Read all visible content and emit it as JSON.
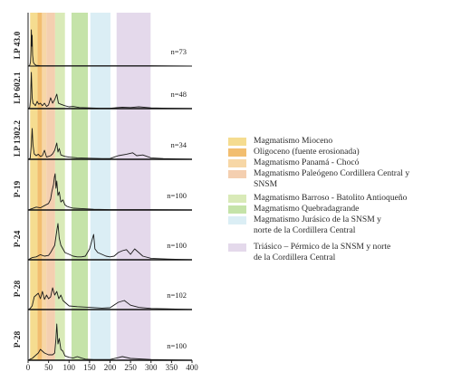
{
  "chart_data": {
    "type": "line",
    "title": "",
    "xlabel": "",
    "ylabel": "",
    "xlim": [
      0,
      400
    ],
    "x_ticks": [
      "0",
      "50",
      "100",
      "150",
      "200",
      "250",
      "300",
      "350",
      "400"
    ],
    "grid": false,
    "legend_position": "right",
    "bands": [
      {
        "label": "Magmatismo Mioceno",
        "range": [
          5,
          23
        ],
        "color": "#f5dc90"
      },
      {
        "label": "Oligoceno (fuente erosionada)",
        "range": [
          23,
          34
        ],
        "color": "#f2be70"
      },
      {
        "label": "Magmatismo Panamá  - Chocó",
        "range": [
          34,
          45
        ],
        "color": "#f7d7a6"
      },
      {
        "label": "Magmatismo Paleógeno Cordillera Central y\nSNSM",
        "range": [
          45,
          66
        ],
        "color": "#f4cfb0"
      },
      {
        "label": "Magmatismo Barroso - Batolito Antioqueño",
        "range": [
          66,
          90
        ],
        "color": "#d9eab8"
      },
      {
        "label": "Magmatismo Quebradagrande",
        "range": [
          106,
          146
        ],
        "color": "#c5e3a9"
      },
      {
        "label": "Magmatismo Jurásico de la SNSM y\nnorte de la Cordillera Central",
        "range": [
          152,
          201
        ],
        "color": "#dbeef5"
      },
      {
        "label": "Triásico – Pérmico de la SNSM y norte\nde la Cordillera Central",
        "range": [
          216,
          299
        ],
        "color": "#e4d9eb"
      }
    ],
    "series": [
      {
        "name": "LP 43.0",
        "n_label": "n=73",
        "points": [
          [
            0,
            0
          ],
          [
            4,
            2
          ],
          [
            6,
            12
          ],
          [
            7,
            45
          ],
          [
            8,
            100
          ],
          [
            9,
            55
          ],
          [
            10,
            85
          ],
          [
            11,
            30
          ],
          [
            13,
            10
          ],
          [
            16,
            5
          ],
          [
            20,
            2
          ],
          [
            30,
            1
          ],
          [
            60,
            1
          ],
          [
            100,
            1
          ],
          [
            200,
            1
          ],
          [
            300,
            1
          ],
          [
            400,
            0
          ]
        ]
      },
      {
        "name": "LP 602.1",
        "n_label": "n=48",
        "points": [
          [
            0,
            0
          ],
          [
            4,
            3
          ],
          [
            6,
            25
          ],
          [
            8,
            100
          ],
          [
            10,
            30
          ],
          [
            12,
            15
          ],
          [
            15,
            12
          ],
          [
            18,
            8
          ],
          [
            22,
            20
          ],
          [
            26,
            12
          ],
          [
            30,
            15
          ],
          [
            35,
            8
          ],
          [
            40,
            15
          ],
          [
            45,
            6
          ],
          [
            50,
            10
          ],
          [
            55,
            30
          ],
          [
            60,
            15
          ],
          [
            65,
            25
          ],
          [
            70,
            40
          ],
          [
            74,
            15
          ],
          [
            80,
            12
          ],
          [
            90,
            8
          ],
          [
            100,
            5
          ],
          [
            110,
            6
          ],
          [
            125,
            3
          ],
          [
            150,
            2
          ],
          [
            175,
            1
          ],
          [
            200,
            1
          ],
          [
            230,
            4
          ],
          [
            250,
            3
          ],
          [
            270,
            5
          ],
          [
            300,
            2
          ],
          [
            340,
            1
          ],
          [
            400,
            0
          ]
        ]
      },
      {
        "name": "LP 1302.2",
        "n_label": "n=34",
        "points": [
          [
            0,
            0
          ],
          [
            5,
            3
          ],
          [
            8,
            40
          ],
          [
            10,
            85
          ],
          [
            12,
            40
          ],
          [
            15,
            15
          ],
          [
            20,
            10
          ],
          [
            25,
            14
          ],
          [
            30,
            8
          ],
          [
            35,
            10
          ],
          [
            40,
            25
          ],
          [
            45,
            6
          ],
          [
            50,
            8
          ],
          [
            55,
            10
          ],
          [
            60,
            15
          ],
          [
            65,
            25
          ],
          [
            70,
            45
          ],
          [
            73,
            20
          ],
          [
            76,
            30
          ],
          [
            80,
            12
          ],
          [
            90,
            8
          ],
          [
            100,
            6
          ],
          [
            120,
            4
          ],
          [
            150,
            3
          ],
          [
            180,
            2
          ],
          [
            200,
            2
          ],
          [
            220,
            10
          ],
          [
            240,
            14
          ],
          [
            255,
            18
          ],
          [
            265,
            10
          ],
          [
            280,
            12
          ],
          [
            300,
            4
          ],
          [
            330,
            2
          ],
          [
            400,
            0
          ]
        ]
      },
      {
        "name": "P-19",
        "n_label": "n=100",
        "points": [
          [
            0,
            0
          ],
          [
            5,
            2
          ],
          [
            10,
            4
          ],
          [
            20,
            8
          ],
          [
            30,
            6
          ],
          [
            40,
            12
          ],
          [
            50,
            18
          ],
          [
            55,
            30
          ],
          [
            58,
            50
          ],
          [
            62,
            70
          ],
          [
            64,
            90
          ],
          [
            66,
            100
          ],
          [
            68,
            60
          ],
          [
            70,
            80
          ],
          [
            73,
            40
          ],
          [
            76,
            50
          ],
          [
            80,
            22
          ],
          [
            85,
            28
          ],
          [
            90,
            14
          ],
          [
            95,
            10
          ],
          [
            100,
            8
          ],
          [
            110,
            5
          ],
          [
            130,
            4
          ],
          [
            160,
            2
          ],
          [
            200,
            1
          ],
          [
            240,
            1
          ],
          [
            300,
            1
          ],
          [
            400,
            0
          ]
        ]
      },
      {
        "name": "P-24",
        "n_label": "n=100",
        "points": [
          [
            0,
            0
          ],
          [
            5,
            3
          ],
          [
            10,
            6
          ],
          [
            20,
            8
          ],
          [
            30,
            14
          ],
          [
            40,
            10
          ],
          [
            50,
            12
          ],
          [
            55,
            20
          ],
          [
            60,
            30
          ],
          [
            65,
            40
          ],
          [
            70,
            80
          ],
          [
            73,
            100
          ],
          [
            76,
            60
          ],
          [
            80,
            40
          ],
          [
            85,
            30
          ],
          [
            90,
            20
          ],
          [
            100,
            15
          ],
          [
            110,
            10
          ],
          [
            120,
            8
          ],
          [
            130,
            8
          ],
          [
            140,
            10
          ],
          [
            150,
            30
          ],
          [
            155,
            50
          ],
          [
            160,
            70
          ],
          [
            163,
            30
          ],
          [
            170,
            20
          ],
          [
            180,
            15
          ],
          [
            190,
            10
          ],
          [
            200,
            8
          ],
          [
            210,
            10
          ],
          [
            220,
            20
          ],
          [
            230,
            25
          ],
          [
            240,
            28
          ],
          [
            250,
            15
          ],
          [
            260,
            30
          ],
          [
            270,
            20
          ],
          [
            280,
            10
          ],
          [
            300,
            4
          ],
          [
            340,
            2
          ],
          [
            400,
            0
          ]
        ]
      },
      {
        "name": "P-28",
        "n_label": "n=102",
        "points": [
          [
            0,
            0
          ],
          [
            5,
            3
          ],
          [
            10,
            10
          ],
          [
            15,
            35
          ],
          [
            20,
            40
          ],
          [
            25,
            45
          ],
          [
            30,
            30
          ],
          [
            35,
            50
          ],
          [
            40,
            28
          ],
          [
            45,
            40
          ],
          [
            50,
            30
          ],
          [
            55,
            35
          ],
          [
            60,
            60
          ],
          [
            65,
            40
          ],
          [
            70,
            50
          ],
          [
            75,
            30
          ],
          [
            80,
            40
          ],
          [
            85,
            25
          ],
          [
            90,
            20
          ],
          [
            100,
            10
          ],
          [
            120,
            8
          ],
          [
            150,
            6
          ],
          [
            180,
            4
          ],
          [
            200,
            5
          ],
          [
            220,
            20
          ],
          [
            235,
            25
          ],
          [
            250,
            12
          ],
          [
            270,
            6
          ],
          [
            300,
            3
          ],
          [
            340,
            2
          ],
          [
            400,
            0
          ]
        ]
      },
      {
        "name": "P-28",
        "n_label": "n=100",
        "points": [
          [
            0,
            0
          ],
          [
            5,
            3
          ],
          [
            10,
            5
          ],
          [
            20,
            15
          ],
          [
            25,
            20
          ],
          [
            30,
            30
          ],
          [
            40,
            20
          ],
          [
            50,
            15
          ],
          [
            60,
            15
          ],
          [
            65,
            20
          ],
          [
            68,
            60
          ],
          [
            70,
            100
          ],
          [
            73,
            45
          ],
          [
            76,
            60
          ],
          [
            80,
            30
          ],
          [
            85,
            25
          ],
          [
            90,
            12
          ],
          [
            100,
            8
          ],
          [
            110,
            6
          ],
          [
            120,
            10
          ],
          [
            130,
            6
          ],
          [
            140,
            3
          ],
          [
            160,
            2
          ],
          [
            200,
            2
          ],
          [
            230,
            10
          ],
          [
            250,
            5
          ],
          [
            300,
            2
          ],
          [
            400,
            0
          ]
        ]
      }
    ]
  }
}
